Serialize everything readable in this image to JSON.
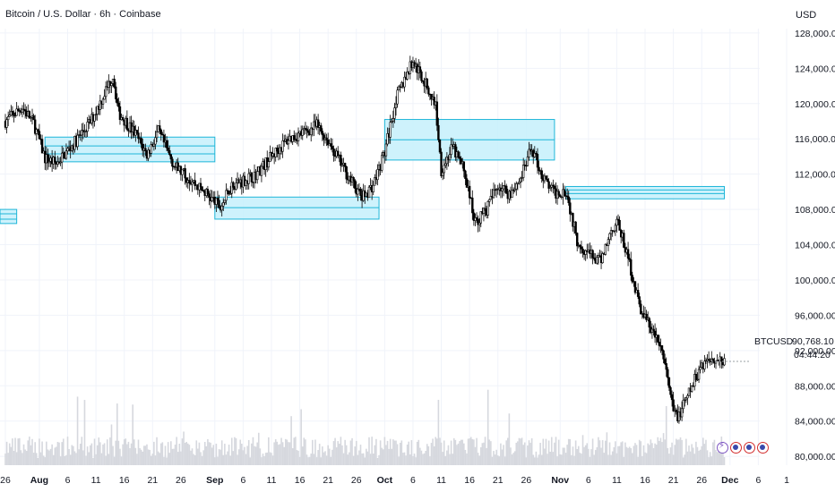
{
  "header": {
    "title": "Bitcoin / U.S. Dollar · 6h · Coinbase",
    "currency": "USD"
  },
  "price_tag": {
    "symbol": "BTCUSD",
    "value": "90,768.10",
    "countdown": "04:44:20"
  },
  "colors": {
    "zone_fill": "#c6f0fb",
    "zone_line": "#1fb6d8",
    "candle": "#000000",
    "volume": "#d6d8de",
    "grid": "#f0f3fa"
  },
  "icons": [
    "flash-icon",
    "us-flag-icon",
    "us-flag-icon",
    "us-flag-icon"
  ],
  "chart_data": {
    "type": "candlestick",
    "y_axis": {
      "ticks": [
        "80,000.00",
        "84,000.00",
        "88,000.00",
        "92,000.00",
        "96,000.00",
        "100,000.00",
        "104,000.00",
        "108,000.00",
        "112,000.00",
        "116,000.00",
        "120,000.00",
        "124,000.00",
        "128,000.00"
      ],
      "tick_values": [
        80000,
        84000,
        88000,
        92000,
        96000,
        100000,
        104000,
        108000,
        112000,
        116000,
        120000,
        124000,
        128000
      ],
      "range": [
        79000,
        128500
      ]
    },
    "x_axis": {
      "ticks": [
        {
          "label": "26",
          "date": "2025-07-26",
          "bold": false
        },
        {
          "label": "Aug",
          "date": "2025-08-01",
          "bold": true
        },
        {
          "label": "6",
          "date": "2025-08-06",
          "bold": false
        },
        {
          "label": "11",
          "date": "2025-08-11",
          "bold": false
        },
        {
          "label": "16",
          "date": "2025-08-16",
          "bold": false
        },
        {
          "label": "21",
          "date": "2025-08-21",
          "bold": false
        },
        {
          "label": "26",
          "date": "2025-08-26",
          "bold": false
        },
        {
          "label": "Sep",
          "date": "2025-09-01",
          "bold": true
        },
        {
          "label": "6",
          "date": "2025-09-06",
          "bold": false
        },
        {
          "label": "11",
          "date": "2025-09-11",
          "bold": false
        },
        {
          "label": "16",
          "date": "2025-09-16",
          "bold": false
        },
        {
          "label": "21",
          "date": "2025-09-21",
          "bold": false
        },
        {
          "label": "26",
          "date": "2025-09-26",
          "bold": false
        },
        {
          "label": "Oct",
          "date": "2025-10-01",
          "bold": true
        },
        {
          "label": "6",
          "date": "2025-10-06",
          "bold": false
        },
        {
          "label": "11",
          "date": "2025-10-11",
          "bold": false
        },
        {
          "label": "16",
          "date": "2025-10-16",
          "bold": false
        },
        {
          "label": "21",
          "date": "2025-10-21",
          "bold": false
        },
        {
          "label": "26",
          "date": "2025-10-26",
          "bold": false
        },
        {
          "label": "Nov",
          "date": "2025-11-01",
          "bold": true
        },
        {
          "label": "6",
          "date": "2025-11-06",
          "bold": false
        },
        {
          "label": "11",
          "date": "2025-11-11",
          "bold": false
        },
        {
          "label": "16",
          "date": "2025-11-16",
          "bold": false
        },
        {
          "label": "21",
          "date": "2025-11-21",
          "bold": false
        },
        {
          "label": "26",
          "date": "2025-11-26",
          "bold": false
        },
        {
          "label": "Dec",
          "date": "2025-12-01",
          "bold": true
        },
        {
          "label": "6",
          "date": "2025-12-06",
          "bold": false
        },
        {
          "label": "1",
          "date": "2025-12-11",
          "bold": false
        }
      ]
    },
    "price_path": [
      [
        "2025-07-26",
        118000
      ],
      [
        "2025-07-29",
        119600
      ],
      [
        "2025-07-31",
        117800
      ],
      [
        "2025-08-02",
        113800
      ],
      [
        "2025-08-04",
        113200
      ],
      [
        "2025-08-07",
        115400
      ],
      [
        "2025-08-10",
        117900
      ],
      [
        "2025-08-12",
        120500
      ],
      [
        "2025-08-14",
        123200
      ],
      [
        "2025-08-15",
        119000
      ],
      [
        "2025-08-18",
        116500
      ],
      [
        "2025-08-20",
        114200
      ],
      [
        "2025-08-22",
        116800
      ],
      [
        "2025-08-25",
        112800
      ],
      [
        "2025-08-28",
        111200
      ],
      [
        "2025-08-31",
        109500
      ],
      [
        "2025-09-02",
        108200
      ],
      [
        "2025-09-04",
        110800
      ],
      [
        "2025-09-08",
        111800
      ],
      [
        "2025-09-11",
        114000
      ],
      [
        "2025-09-14",
        116000
      ],
      [
        "2025-09-17",
        116800
      ],
      [
        "2025-09-19",
        117500
      ],
      [
        "2025-09-21",
        115800
      ],
      [
        "2025-09-23",
        113500
      ],
      [
        "2025-09-25",
        111300
      ],
      [
        "2025-09-27",
        109300
      ],
      [
        "2025-09-29",
        110800
      ],
      [
        "2025-10-01",
        114500
      ],
      [
        "2025-10-03",
        120500
      ],
      [
        "2025-10-05",
        123500
      ],
      [
        "2025-10-06",
        124800
      ],
      [
        "2025-10-08",
        122500
      ],
      [
        "2025-10-10",
        119800
      ],
      [
        "2025-10-11",
        112500
      ],
      [
        "2025-10-13",
        115000
      ],
      [
        "2025-10-15",
        112500
      ],
      [
        "2025-10-17",
        106500
      ],
      [
        "2025-10-19",
        108000
      ],
      [
        "2025-10-21",
        110800
      ],
      [
        "2025-10-23",
        109800
      ],
      [
        "2025-10-25",
        111500
      ],
      [
        "2025-10-27",
        115000
      ],
      [
        "2025-10-29",
        111500
      ],
      [
        "2025-10-31",
        109800
      ],
      [
        "2025-11-02",
        110200
      ],
      [
        "2025-11-04",
        104500
      ],
      [
        "2025-11-06",
        103000
      ],
      [
        "2025-11-08",
        102000
      ],
      [
        "2025-11-10",
        105500
      ],
      [
        "2025-11-11",
        106800
      ],
      [
        "2025-11-13",
        102500
      ],
      [
        "2025-11-15",
        97000
      ],
      [
        "2025-11-17",
        94500
      ],
      [
        "2025-11-19",
        92000
      ],
      [
        "2025-11-21",
        85000
      ],
      [
        "2025-11-22",
        84600
      ],
      [
        "2025-11-24",
        87500
      ],
      [
        "2025-11-26",
        90500
      ],
      [
        "2025-11-28",
        91200
      ],
      [
        "2025-11-30",
        90768
      ]
    ],
    "zones": [
      {
        "start": "2025-07-22",
        "end": "2025-07-28",
        "low": 106400,
        "high": 108000,
        "lines": [
          106900,
          107500
        ]
      },
      {
        "start": "2025-08-02",
        "end": "2025-09-01",
        "low": 113400,
        "high": 116200,
        "lines": [
          114300,
          115200
        ]
      },
      {
        "start": "2025-09-01",
        "end": "2025-09-30",
        "low": 106900,
        "high": 109400,
        "lines": [
          108200
        ]
      },
      {
        "start": "2025-10-01",
        "end": "2025-10-31",
        "low": 113600,
        "high": 118200,
        "lines": [
          115900
        ]
      },
      {
        "start": "2025-11-02",
        "end": "2025-11-30",
        "low": 109200,
        "high": 110600,
        "lines": [
          109800,
          110200
        ]
      }
    ]
  }
}
